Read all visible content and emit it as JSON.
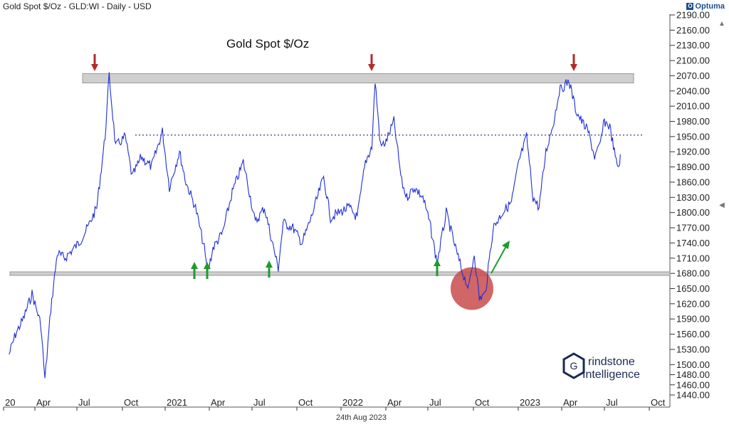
{
  "header": {
    "text": "Gold Spot $/Oz - GLD:WI - Daily - USD",
    "brand": "Optuma",
    "date_label": "24th Aug 2023"
  },
  "logo": {
    "line1": "rindstone",
    "line2": "Intelligence"
  },
  "colors": {
    "series": "#1f2fd6",
    "band": "#cfcfcf",
    "arrow_up": "#1e9b2e",
    "arrow_down": "#b22b2b",
    "highlight": "#c94b4b",
    "dotted": "#5a5a9a"
  },
  "chart_data": {
    "type": "line",
    "title": "Gold Spot $/Oz",
    "ylim": [
      1440,
      2200
    ],
    "y_ticks": [
      1440,
      1460,
      1480,
      1500,
      1530,
      1560,
      1590,
      1620,
      1650,
      1680,
      1710,
      1740,
      1770,
      1800,
      1830,
      1860,
      1890,
      1920,
      1950,
      1980,
      2010,
      2040,
      2070,
      2100,
      2130,
      2160,
      2190
    ],
    "y_tick_labels": [
      "1440.00",
      "1460.00",
      "1480.00",
      "1500.00",
      "1530.00",
      "1560.00",
      "1590.00",
      "1620.00",
      "1650.00",
      "1680.00",
      "1710.00",
      "1740.00",
      "1770.00",
      "1800.00",
      "1830.00",
      "1860.00",
      "1890.00",
      "1920.00",
      "1950.00",
      "1980.00",
      "2010.00",
      "2040.00",
      "2070.00",
      "2100.00",
      "2130.00",
      "2160.00",
      "2190.00"
    ],
    "x_ticks": [
      "20",
      "Apr",
      "Jul",
      "Oct",
      "2021",
      "Apr",
      "Jul",
      "Oct",
      "2022",
      "Apr",
      "Jul",
      "Oct",
      "2023",
      "Apr",
      "Jul",
      "Oct"
    ],
    "series": [
      {
        "x": [
          "2020-01-01",
          "2020-01-15",
          "2020-02-01",
          "2020-02-20",
          "2020-03-10",
          "2020-03-19",
          "2020-04-01",
          "2020-04-15",
          "2020-05-01",
          "2020-06-01",
          "2020-06-20",
          "2020-07-10",
          "2020-07-28",
          "2020-08-06",
          "2020-08-20",
          "2020-09-10",
          "2020-09-25",
          "2020-10-15",
          "2020-11-06",
          "2020-11-30",
          "2020-12-15",
          "2021-01-06",
          "2021-01-20",
          "2021-02-10",
          "2021-03-01",
          "2021-03-08",
          "2021-03-20",
          "2021-04-10",
          "2021-05-01",
          "2021-05-25",
          "2021-06-01",
          "2021-06-20",
          "2021-07-10",
          "2021-08-09",
          "2021-08-20",
          "2021-09-10",
          "2021-09-30",
          "2021-10-20",
          "2021-11-16",
          "2021-12-01",
          "2021-12-20",
          "2022-01-10",
          "2022-01-28",
          "2022-02-15",
          "2022-03-01",
          "2022-03-08",
          "2022-03-20",
          "2022-04-01",
          "2022-04-18",
          "2022-05-05",
          "2022-05-16",
          "2022-06-01",
          "2022-06-20",
          "2022-07-05",
          "2022-07-21",
          "2022-08-10",
          "2022-08-30",
          "2022-09-15",
          "2022-09-28",
          "2022-10-10",
          "2022-10-21",
          "2022-11-03",
          "2022-11-20",
          "2022-12-10",
          "2022-12-30",
          "2023-01-15",
          "2023-02-01",
          "2023-02-15",
          "2023-02-28",
          "2023-03-15",
          "2023-04-01",
          "2023-04-13",
          "2023-05-04",
          "2023-05-20",
          "2023-06-01",
          "2023-06-15",
          "2023-06-29",
          "2023-07-10",
          "2023-07-20",
          "2023-08-01",
          "2023-08-15",
          "2023-08-21",
          "2023-08-24"
        ],
        "y": [
          1520,
          1560,
          1590,
          1640,
          1580,
          1470,
          1610,
          1720,
          1710,
          1740,
          1770,
          1810,
          1950,
          2070,
          1930,
          1950,
          1870,
          1910,
          1890,
          1960,
          1850,
          1920,
          1860,
          1810,
          1730,
          1680,
          1730,
          1760,
          1840,
          1900,
          1870,
          1780,
          1810,
          1690,
          1780,
          1770,
          1740,
          1790,
          1870,
          1790,
          1800,
          1810,
          1790,
          1900,
          1930,
          2060,
          1930,
          1940,
          1980,
          1860,
          1830,
          1850,
          1830,
          1780,
          1700,
          1800,
          1730,
          1680,
          1650,
          1720,
          1630,
          1640,
          1770,
          1800,
          1820,
          1900,
          1950,
          1830,
          1810,
          1920,
          1980,
          2040,
          2060,
          2000,
          1980,
          1960,
          1910,
          1930,
          1980,
          1970,
          1900,
          1890,
          1915
        ],
        "ohlc_noise": "daily"
      }
    ],
    "resistance_band": [
      2060,
      2070
    ],
    "support_band": [
      1677,
      1683
    ],
    "dotted_level": 1953,
    "highlight_region": {
      "center_x": "2022-10-05",
      "center_y": 1650
    }
  }
}
